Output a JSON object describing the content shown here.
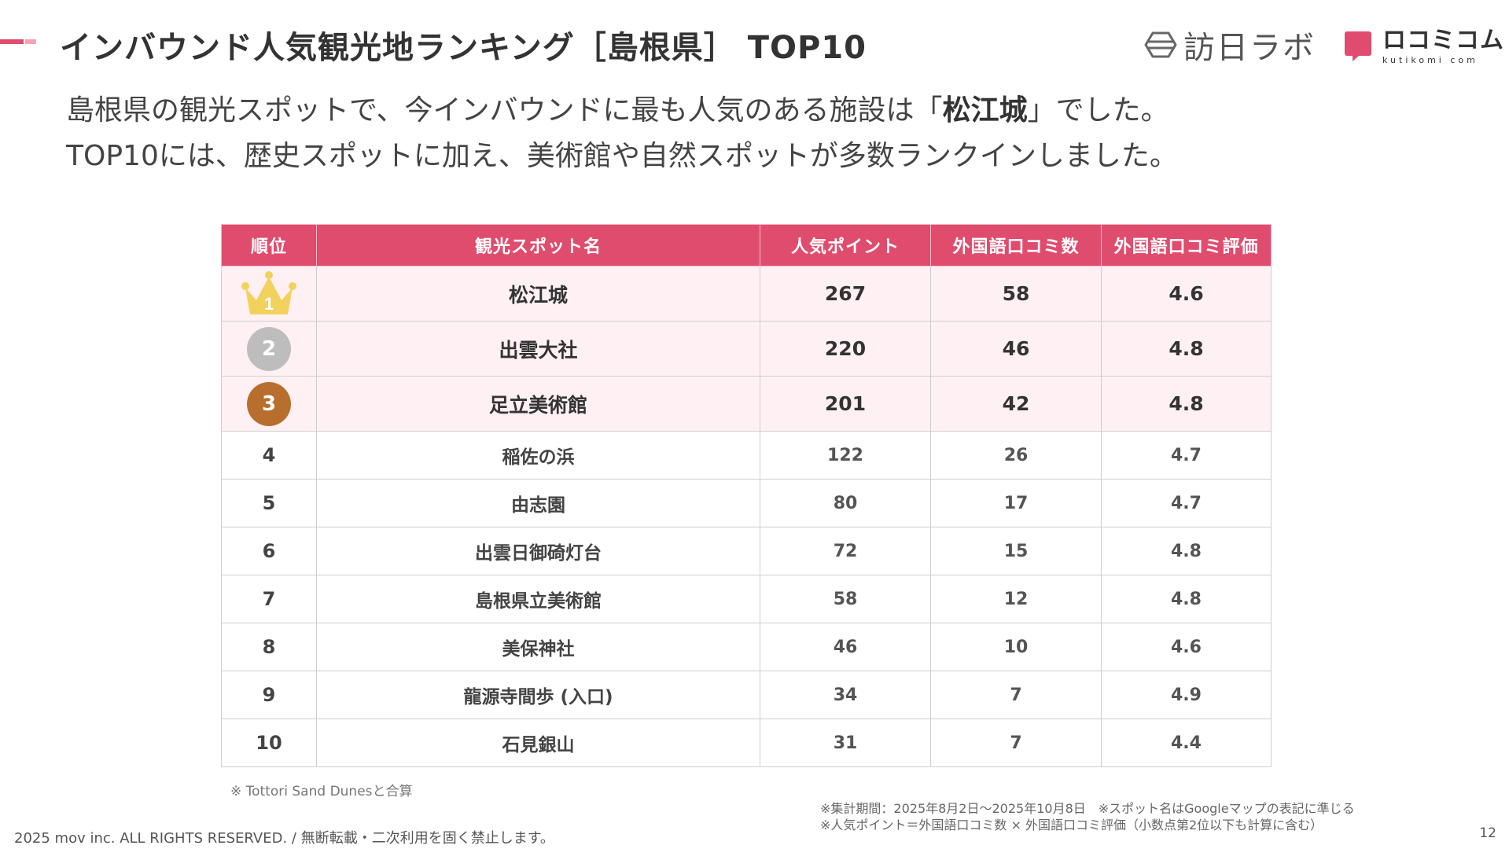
{
  "colors": {
    "accent": "#e04c6e",
    "accent_light": "#f4a3b4",
    "header_bg": "#e04c6e",
    "top_row_bg": "#fff0f4",
    "gold": "#f2d15c",
    "silver": "#bdbdbd",
    "bronze": "#b86e2c"
  },
  "slide": {
    "title": "インバウンド人気観光地ランキング［島根県］ TOP10",
    "lead_line1_pre": "島根県の観光スポットで、今インバウンドに最も人気のある施設は「",
    "lead_line1_bold": "松江城",
    "lead_line1_post": "」でした。",
    "lead_line2": "TOP10には、歴史スポットに加え、美術館や自然スポットが多数ランクインしました。"
  },
  "logos": {
    "houn_label": "訪日ラボ",
    "houn_icon": "hexagon-icon",
    "kuti_label": "ロコミコム",
    "kuti_sub": "kutikomi com",
    "kuti_icon": "speech-bubble-icon"
  },
  "table": {
    "headers": {
      "rank": "順位",
      "name": "観光スポット名",
      "points": "人気ポイント",
      "reviews": "外国語口コミ数",
      "rating": "外国語口コミ評価"
    },
    "top": [
      {
        "rank": "1",
        "badge": "crown-icon",
        "name": "松江城",
        "points": "267",
        "reviews": "58",
        "rating": "4.6"
      },
      {
        "rank": "2",
        "badge": "silver-medal-icon",
        "name": "出雲大社",
        "points": "220",
        "reviews": "46",
        "rating": "4.8"
      },
      {
        "rank": "3",
        "badge": "bronze-medal-icon",
        "name": "足立美術館",
        "points": "201",
        "reviews": "42",
        "rating": "4.8"
      }
    ],
    "rows": [
      {
        "rank": "4",
        "name": "稲佐の浜",
        "points": "122",
        "reviews": "26",
        "rating": "4.7"
      },
      {
        "rank": "5",
        "name": "由志園",
        "points": "80",
        "reviews": "17",
        "rating": "4.7"
      },
      {
        "rank": "6",
        "name": "出雲日御碕灯台",
        "points": "72",
        "reviews": "15",
        "rating": "4.8"
      },
      {
        "rank": "7",
        "name": "島根県立美術館",
        "points": "58",
        "reviews": "12",
        "rating": "4.8"
      },
      {
        "rank": "8",
        "name": "美保神社",
        "points": "46",
        "reviews": "10",
        "rating": "4.6"
      },
      {
        "rank": "9",
        "name": "龍源寺間歩 (入口)",
        "points": "34",
        "reviews": "7",
        "rating": "4.9"
      },
      {
        "rank": "10",
        "name": "石見銀山",
        "points": "31",
        "reviews": "7",
        "rating": "4.4"
      }
    ]
  },
  "notes": {
    "dunes": "※ Tottori Sand Dunesと合算",
    "period_line1": "※集計期間：2025年8月2日〜2025年10月8日　※スポット名はGoogleマップの表記に準じる",
    "period_line2": "※人気ポイント＝外国語口コミ数 × 外国語口コミ評価（小数点第2位以下も計算に含む）"
  },
  "footer": {
    "copyright": "2025 mov inc. ALL RIGHTS RESERVED. / 無断転載・二次利用を固く禁止します。",
    "page": "12"
  }
}
